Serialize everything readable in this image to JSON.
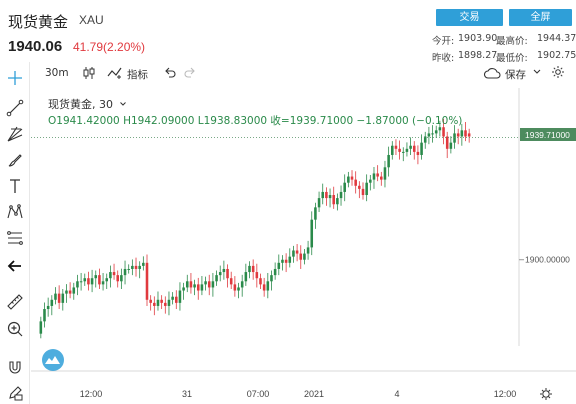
{
  "header": {
    "title": "现货黄金",
    "code": "XAU",
    "price": "1940.06",
    "change": "41.79(2.20%)",
    "trade_label": "交易",
    "fullscreen_label": "全屏",
    "stats": [
      {
        "label": "今开:",
        "value": "1903.90"
      },
      {
        "label": "最高价:",
        "value": "1944.37"
      },
      {
        "label": "昨收:",
        "value": "1898.27"
      },
      {
        "label": "最低价:",
        "value": "1902.75"
      }
    ]
  },
  "toolbar": {
    "interval": "30m",
    "indicators_label": "指标",
    "save_label": "保存"
  },
  "legend": {
    "name": "现货黄金",
    "interval": "30",
    "ohlc": "O1941.42000 H1942.09000 L1938.83000 收=1939.71000 −1.87000 (−0.10%)"
  },
  "colors": {
    "up": "#2a8a4a",
    "down": "#e0393e",
    "accent": "#2f9fd8",
    "price_label": "#4d8b5e"
  },
  "chart_data": {
    "type": "candlestick",
    "price_label": "1939.71000",
    "ylabel_ticks": [
      {
        "value": 1900,
        "label": "1900.00000"
      }
    ],
    "ylim": [
      1872,
      1946
    ],
    "x_tick_labels": [
      "12:00",
      "31",
      "07:00",
      "2021",
      "4",
      "12:00"
    ],
    "closes": [
      1880,
      1884,
      1885,
      1887,
      1889,
      1886,
      1889,
      1890,
      1889,
      1891,
      1893,
      1893,
      1894,
      1892,
      1894,
      1895,
      1892,
      1893,
      1894,
      1896,
      1895,
      1893,
      1895,
      1897,
      1897,
      1898,
      1897,
      1898,
      1899,
      1887,
      1886,
      1885,
      1887,
      1886,
      1885,
      1887,
      1888,
      1886,
      1890,
      1891,
      1893,
      1891,
      1892,
      1890,
      1892,
      1893,
      1891,
      1893,
      1895,
      1896,
      1897,
      1894,
      1892,
      1890,
      1891,
      1893,
      1896,
      1898,
      1896,
      1894,
      1892,
      1890,
      1893,
      1895,
      1897,
      1899,
      1900,
      1899,
      1901,
      1903,
      1902,
      1900,
      1902,
      1904,
      1913,
      1917,
      1920,
      1922,
      1920,
      1921,
      1918,
      1920,
      1922,
      1925,
      1927,
      1926,
      1924,
      1923,
      1921,
      1925,
      1926,
      1928,
      1927,
      1926,
      1930,
      1934,
      1937,
      1936,
      1935,
      1935,
      1936,
      1937,
      1935,
      1934,
      1938,
      1940,
      1941,
      1941,
      1942,
      1943,
      1940,
      1936,
      1938,
      1941,
      1940,
      1942,
      1940,
      1940
    ],
    "opens": [
      1876,
      1880,
      1884,
      1885,
      1887,
      1889,
      1886,
      1889,
      1890,
      1889,
      1891,
      1893,
      1893,
      1894,
      1892,
      1894,
      1895,
      1892,
      1893,
      1894,
      1896,
      1895,
      1893,
      1895,
      1897,
      1897,
      1898,
      1897,
      1898,
      1899,
      1887,
      1886,
      1885,
      1887,
      1886,
      1885,
      1887,
      1888,
      1886,
      1890,
      1891,
      1893,
      1891,
      1892,
      1890,
      1892,
      1893,
      1891,
      1893,
      1895,
      1896,
      1897,
      1894,
      1892,
      1890,
      1891,
      1893,
      1896,
      1898,
      1896,
      1894,
      1892,
      1890,
      1893,
      1895,
      1897,
      1899,
      1900,
      1899,
      1901,
      1903,
      1902,
      1900,
      1902,
      1904,
      1913,
      1917,
      1920,
      1922,
      1920,
      1921,
      1918,
      1920,
      1922,
      1925,
      1927,
      1926,
      1924,
      1923,
      1921,
      1925,
      1926,
      1928,
      1927,
      1926,
      1930,
      1934,
      1937,
      1936,
      1935,
      1935,
      1936,
      1937,
      1935,
      1934,
      1938,
      1940,
      1941,
      1941,
      1942,
      1943,
      1940,
      1936,
      1938,
      1941,
      1940,
      1942,
      1941
    ]
  }
}
